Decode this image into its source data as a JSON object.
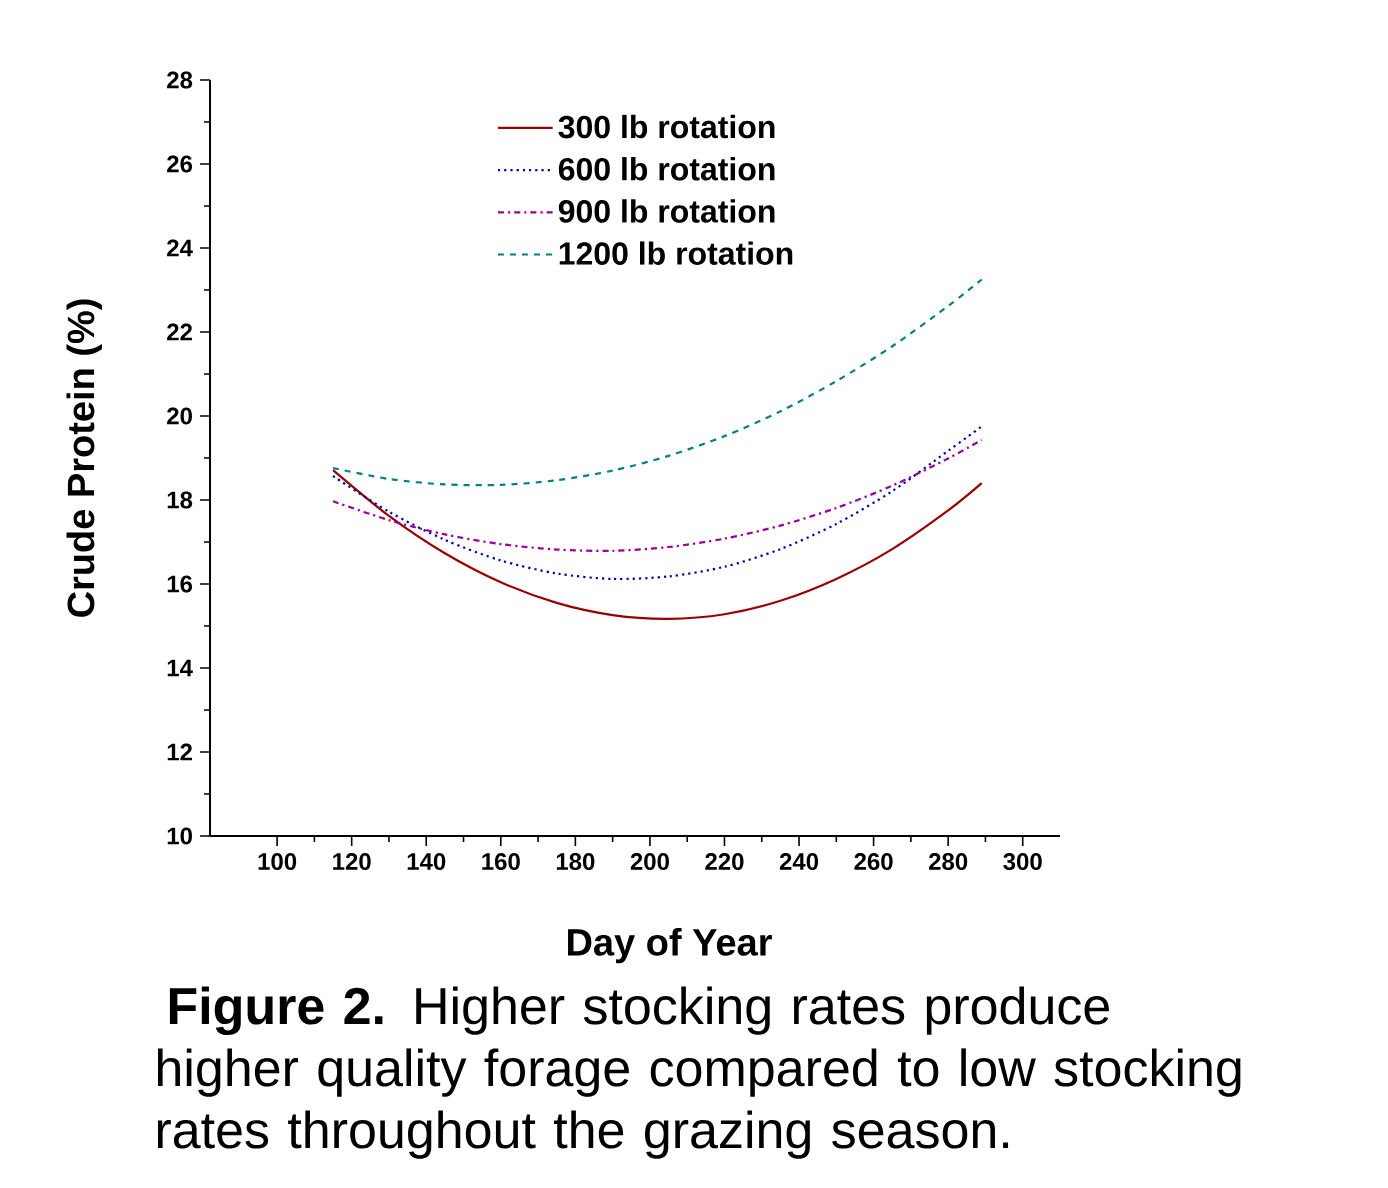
{
  "chart_data": {
    "type": "line",
    "xlabel": "Day of Year",
    "ylabel": "Crude Protein (%)",
    "x": [
      115,
      130,
      145,
      160,
      175,
      190,
      205,
      220,
      235,
      250,
      265,
      280,
      289
    ],
    "series": [
      {
        "name": "300 lb rotation",
        "color": "#990000",
        "line_style": "solid",
        "values": [
          18.71,
          17.62,
          16.73,
          16.04,
          15.55,
          15.26,
          15.17,
          15.28,
          15.6,
          16.12,
          16.83,
          17.75,
          18.4
        ]
      },
      {
        "name": "600 lb rotation",
        "color": "#0000aa",
        "line_style": "dotted",
        "values": [
          18.57,
          17.72,
          17.05,
          16.56,
          16.25,
          16.12,
          16.18,
          16.41,
          16.83,
          17.43,
          18.21,
          19.17,
          19.75
        ]
      },
      {
        "name": "900 lb rotation",
        "color": "#990099",
        "line_style": "dashdot",
        "values": [
          17.97,
          17.52,
          17.18,
          16.95,
          16.82,
          16.79,
          16.88,
          17.08,
          17.39,
          17.81,
          18.34,
          18.99,
          19.43
        ]
      },
      {
        "name": "1200 lb rotation",
        "color": "#008080",
        "line_style": "dashed",
        "values": [
          18.76,
          18.5,
          18.37,
          18.36,
          18.47,
          18.7,
          19.05,
          19.52,
          20.11,
          20.83,
          21.66,
          22.62,
          23.25
        ]
      }
    ],
    "xlim": [
      82,
      310
    ],
    "xticks": [
      100,
      120,
      140,
      160,
      180,
      200,
      220,
      240,
      260,
      280,
      300
    ],
    "ylim": [
      10,
      28
    ],
    "yticks": [
      10,
      12,
      14,
      16,
      18,
      20,
      22,
      24,
      26,
      28
    ],
    "grid": false,
    "legend": "top",
    "annotations": [
      "**Figure 2.** Higher stocking rates produce higher quality forage compared to low stocking rates throughout the grazing season."
    ]
  }
}
